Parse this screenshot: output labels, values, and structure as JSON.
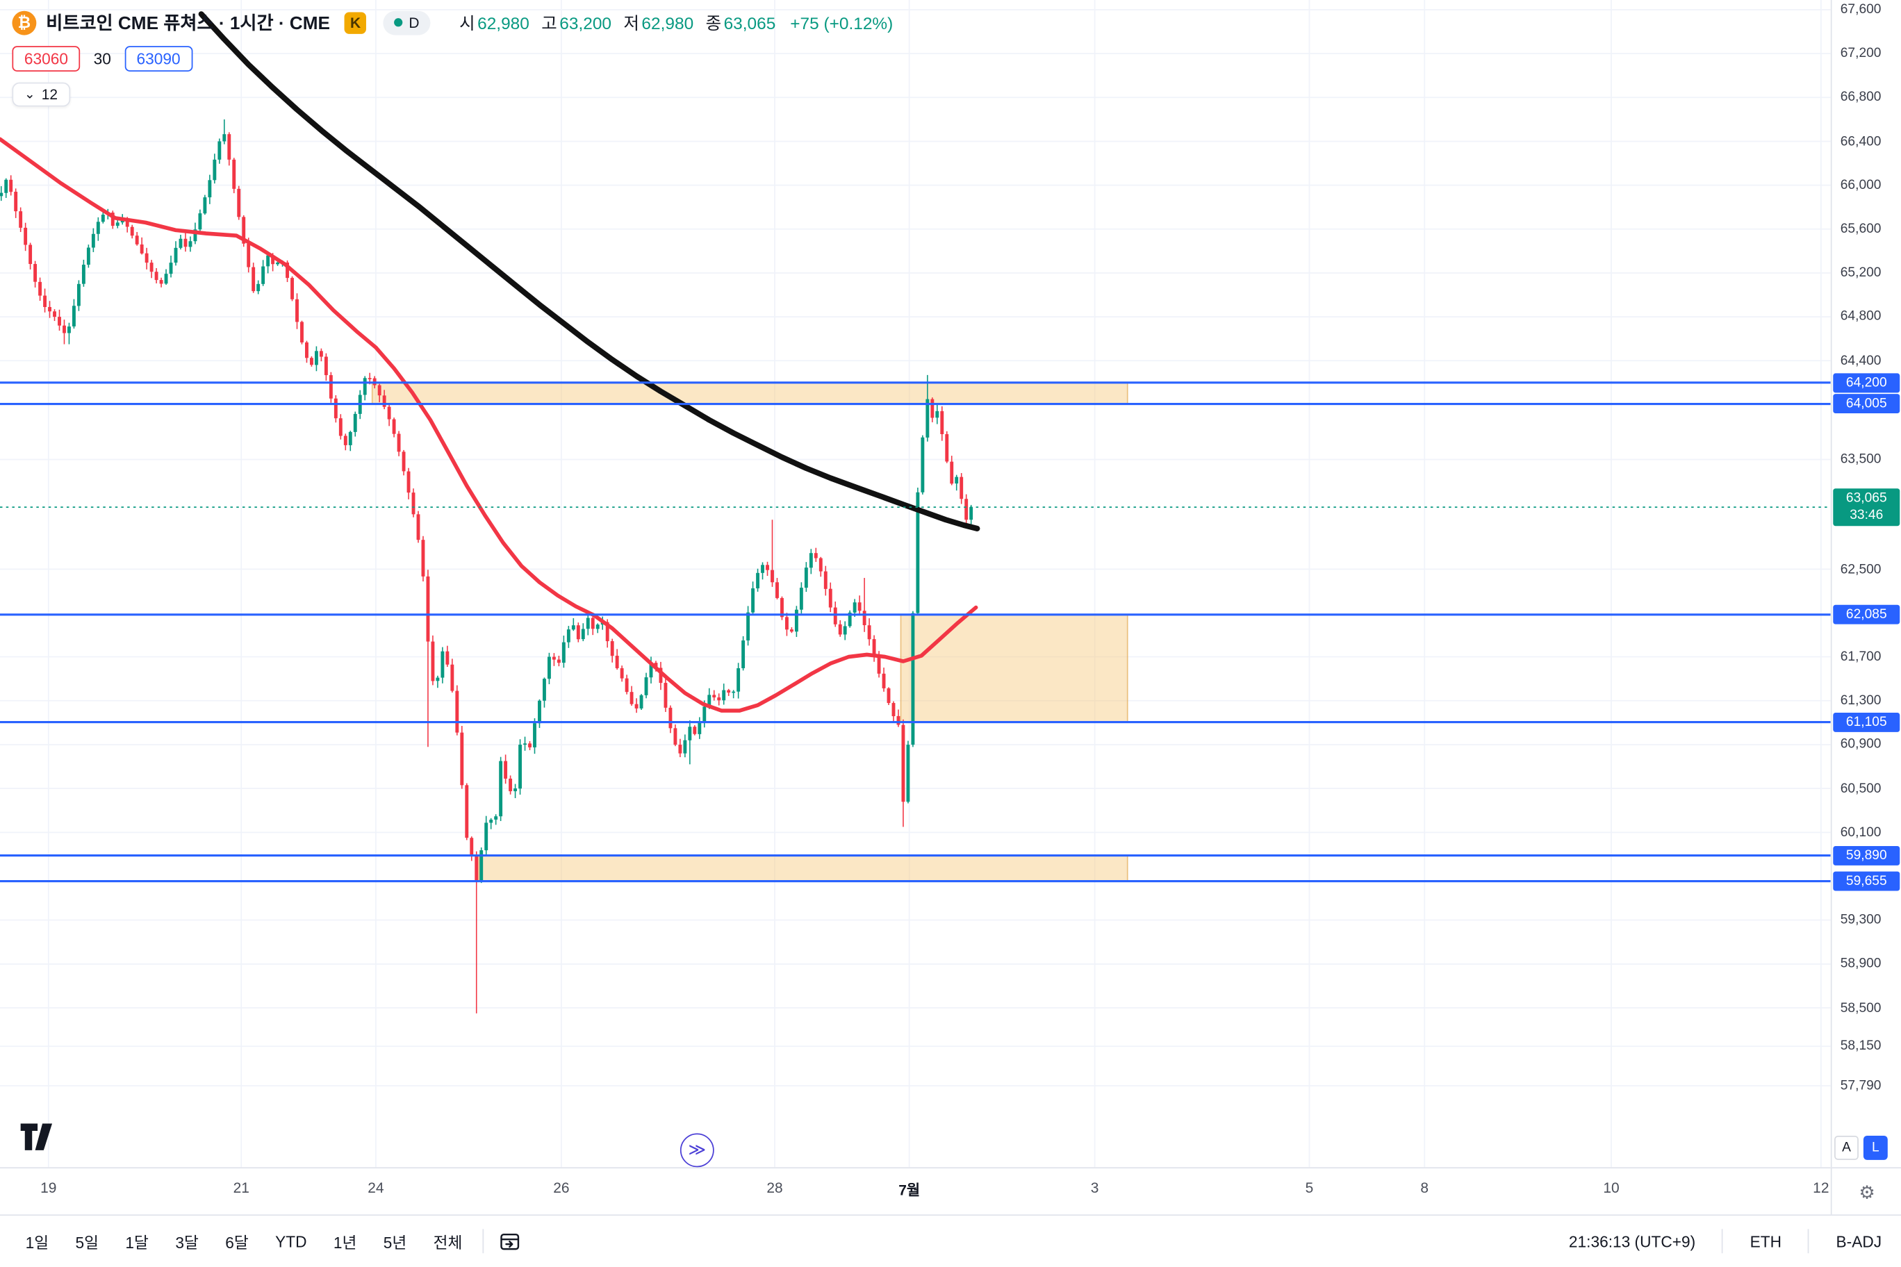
{
  "header": {
    "title": "비트코인 CME 퓨쳐스 · 1시간 · CME",
    "provider_badge": "K",
    "market_status": "D",
    "ohlc": {
      "open_label": "시",
      "open_value": "62,980",
      "high_label": "고",
      "high_value": "63,200",
      "low_label": "저",
      "low_value": "62,980",
      "close_label": "종",
      "close_value": "63,065",
      "change_value": "+75 (+0.12%)"
    },
    "order_row": {
      "sell_price": "63060",
      "quantity": "30",
      "buy_price": "63090"
    },
    "collapse": {
      "count": "12"
    }
  },
  "price_axis": {
    "last_price_label": "63,065",
    "countdown": "33:46",
    "scale_buttons": {
      "auto": "A",
      "log": "L"
    }
  },
  "toolbar": {
    "ranges": [
      "1일",
      "5일",
      "1달",
      "3달",
      "6달",
      "YTD",
      "1년",
      "5년",
      "전체"
    ],
    "clock": "21:36:13 (UTC+9)",
    "session_label": "ETH",
    "adjust_label": "B-ADJ"
  },
  "chart_data": {
    "type": "candlestick",
    "title": "비트코인 CME 퓨쳐스 · 1시간 · CME",
    "interval": "1시간",
    "exchange": "CME",
    "current": {
      "open": 62980,
      "high": 63200,
      "low": 62980,
      "close": 63065,
      "change": "+75 (+0.12%)"
    },
    "last_price": 63065,
    "y_ticks": [
      67600,
      67200,
      66800,
      66400,
      66000,
      65600,
      65200,
      64800,
      64400,
      63500,
      62500,
      61700,
      61300,
      60900,
      60500,
      60100,
      59300,
      58900,
      58500,
      58150,
      57790
    ],
    "levels": [
      {
        "price": 64200,
        "label": "64,200"
      },
      {
        "price": 64005,
        "label": "64,005"
      },
      {
        "price": 62085,
        "label": "62,085"
      },
      {
        "price": 61105,
        "label": "61,105"
      },
      {
        "price": 59890,
        "label": "59,890"
      },
      {
        "price": 59655,
        "label": "59,655"
      }
    ],
    "zones": [
      {
        "x1": 307,
        "x2": 930,
        "price_low": 64005,
        "price_high": 64200
      },
      {
        "x1": 743,
        "x2": 930,
        "price_low": 61105,
        "price_high": 62085
      },
      {
        "x1": 395,
        "x2": 930,
        "price_low": 59655,
        "price_high": 59890
      }
    ],
    "x_labels": [
      {
        "x": 40,
        "label": "19"
      },
      {
        "x": 199,
        "label": "21"
      },
      {
        "x": 310,
        "label": "24"
      },
      {
        "x": 463,
        "label": "26"
      },
      {
        "x": 639,
        "label": "28"
      },
      {
        "x": 750,
        "label": "7월",
        "bold": true
      },
      {
        "x": 903,
        "label": "3"
      },
      {
        "x": 1080,
        "label": "5"
      },
      {
        "x": 1175,
        "label": "8"
      },
      {
        "x": 1329,
        "label": "10"
      },
      {
        "x": 1502,
        "label": "12"
      }
    ],
    "price_path": [
      [
        0,
        65900
      ],
      [
        6,
        66080
      ],
      [
        12,
        65800
      ],
      [
        20,
        65500
      ],
      [
        28,
        65150
      ],
      [
        36,
        64900
      ],
      [
        44,
        64820
      ],
      [
        50,
        64700
      ],
      [
        55,
        64620
      ],
      [
        60,
        64850
      ],
      [
        66,
        65150
      ],
      [
        72,
        65400
      ],
      [
        80,
        65650
      ],
      [
        88,
        65780
      ],
      [
        94,
        65600
      ],
      [
        100,
        65720
      ],
      [
        108,
        65560
      ],
      [
        116,
        65400
      ],
      [
        124,
        65230
      ],
      [
        132,
        65080
      ],
      [
        140,
        65260
      ],
      [
        148,
        65530
      ],
      [
        154,
        65420
      ],
      [
        160,
        65560
      ],
      [
        166,
        65780
      ],
      [
        172,
        66000
      ],
      [
        178,
        66280
      ],
      [
        184,
        66520
      ],
      [
        188,
        66300
      ],
      [
        194,
        65900
      ],
      [
        200,
        65520
      ],
      [
        206,
        65200
      ],
      [
        210,
        64980
      ],
      [
        215,
        65180
      ],
      [
        220,
        65380
      ],
      [
        226,
        65260
      ],
      [
        232,
        65330
      ],
      [
        238,
        65120
      ],
      [
        244,
        64800
      ],
      [
        250,
        64520
      ],
      [
        256,
        64330
      ],
      [
        262,
        64520
      ],
      [
        267,
        64380
      ],
      [
        272,
        64100
      ],
      [
        278,
        63830
      ],
      [
        284,
        63600
      ],
      [
        290,
        63780
      ],
      [
        296,
        64050
      ],
      [
        302,
        64280
      ],
      [
        308,
        64200
      ],
      [
        314,
        64060
      ],
      [
        320,
        63900
      ],
      [
        326,
        63700
      ],
      [
        332,
        63440
      ],
      [
        338,
        63150
      ],
      [
        344,
        62850
      ],
      [
        350,
        62350
      ],
      [
        355,
        61500
      ],
      [
        360,
        61450
      ],
      [
        365,
        61750
      ],
      [
        370,
        61600
      ],
      [
        375,
        61250
      ],
      [
        380,
        60650
      ],
      [
        385,
        60050
      ],
      [
        390,
        59850
      ],
      [
        394,
        59600
      ],
      [
        398,
        60050
      ],
      [
        403,
        60280
      ],
      [
        408,
        60120
      ],
      [
        413,
        60750
      ],
      [
        418,
        60550
      ],
      [
        424,
        60400
      ],
      [
        430,
        61000
      ],
      [
        436,
        60820
      ],
      [
        442,
        61150
      ],
      [
        448,
        61450
      ],
      [
        454,
        61750
      ],
      [
        460,
        61600
      ],
      [
        466,
        61880
      ],
      [
        472,
        62020
      ],
      [
        478,
        61830
      ],
      [
        484,
        62080
      ],
      [
        490,
        61930
      ],
      [
        496,
        62060
      ],
      [
        502,
        61800
      ],
      [
        508,
        61620
      ],
      [
        514,
        61480
      ],
      [
        520,
        61280
      ],
      [
        526,
        61220
      ],
      [
        532,
        61480
      ],
      [
        538,
        61680
      ],
      [
        544,
        61520
      ],
      [
        550,
        61180
      ],
      [
        556,
        60920
      ],
      [
        562,
        60800
      ],
      [
        568,
        61080
      ],
      [
        574,
        60980
      ],
      [
        580,
        61220
      ],
      [
        586,
        61380
      ],
      [
        592,
        61280
      ],
      [
        598,
        61420
      ],
      [
        604,
        61330
      ],
      [
        610,
        61650
      ],
      [
        616,
        62050
      ],
      [
        622,
        62380
      ],
      [
        628,
        62550
      ],
      [
        634,
        62480
      ],
      [
        640,
        62280
      ],
      [
        646,
        62020
      ],
      [
        652,
        61880
      ],
      [
        658,
        62180
      ],
      [
        664,
        62480
      ],
      [
        670,
        62680
      ],
      [
        676,
        62520
      ],
      [
        682,
        62280
      ],
      [
        688,
        62020
      ],
      [
        694,
        61880
      ],
      [
        700,
        62080
      ],
      [
        706,
        62220
      ],
      [
        712,
        62020
      ],
      [
        718,
        61830
      ],
      [
        724,
        61580
      ],
      [
        730,
        61380
      ],
      [
        736,
        61180
      ],
      [
        741,
        61080
      ],
      [
        745,
        60380
      ],
      [
        749,
        60900
      ],
      [
        753,
        62100
      ],
      [
        757,
        63200
      ],
      [
        761,
        63700
      ],
      [
        765,
        64050
      ],
      [
        769,
        63880
      ],
      [
        773,
        63940
      ],
      [
        777,
        63730
      ],
      [
        781,
        63480
      ],
      [
        785,
        63280
      ],
      [
        789,
        63340
      ],
      [
        793,
        63140
      ],
      [
        797,
        62950
      ],
      [
        801,
        63065
      ]
    ],
    "wick_extremes": [
      {
        "x": 55,
        "low": 64550
      },
      {
        "x": 184,
        "high": 66600
      },
      {
        "x": 354,
        "low": 60880
      },
      {
        "x": 392,
        "low": 58450
      },
      {
        "x": 568,
        "low": 60720
      },
      {
        "x": 636,
        "high": 62950
      },
      {
        "x": 714,
        "high": 62420
      },
      {
        "x": 745,
        "low": 60150
      },
      {
        "x": 764,
        "high": 64270
      }
    ],
    "ma_fast": [
      [
        0,
        66420
      ],
      [
        25,
        66220
      ],
      [
        50,
        66020
      ],
      [
        75,
        65840
      ],
      [
        95,
        65700
      ],
      [
        120,
        65660
      ],
      [
        145,
        65590
      ],
      [
        170,
        65560
      ],
      [
        195,
        65540
      ],
      [
        215,
        65420
      ],
      [
        235,
        65280
      ],
      [
        255,
        65090
      ],
      [
        275,
        64860
      ],
      [
        295,
        64660
      ],
      [
        310,
        64520
      ],
      [
        325,
        64330
      ],
      [
        340,
        64110
      ],
      [
        355,
        63860
      ],
      [
        370,
        63560
      ],
      [
        385,
        63260
      ],
      [
        400,
        62990
      ],
      [
        415,
        62740
      ],
      [
        430,
        62530
      ],
      [
        445,
        62380
      ],
      [
        460,
        62260
      ],
      [
        475,
        62160
      ],
      [
        490,
        62080
      ],
      [
        505,
        61960
      ],
      [
        520,
        61810
      ],
      [
        535,
        61660
      ],
      [
        550,
        61510
      ],
      [
        565,
        61370
      ],
      [
        580,
        61270
      ],
      [
        595,
        61210
      ],
      [
        610,
        61210
      ],
      [
        625,
        61260
      ],
      [
        640,
        61350
      ],
      [
        655,
        61450
      ],
      [
        670,
        61550
      ],
      [
        685,
        61640
      ],
      [
        700,
        61700
      ],
      [
        715,
        61720
      ],
      [
        730,
        61700
      ],
      [
        745,
        61660
      ],
      [
        760,
        61710
      ],
      [
        775,
        61860
      ],
      [
        790,
        62010
      ],
      [
        805,
        62150
      ]
    ],
    "ma_slow": [
      [
        166,
        67560
      ],
      [
        185,
        67330
      ],
      [
        205,
        67100
      ],
      [
        225,
        66890
      ],
      [
        245,
        66690
      ],
      [
        265,
        66500
      ],
      [
        285,
        66320
      ],
      [
        305,
        66150
      ],
      [
        325,
        65980
      ],
      [
        345,
        65810
      ],
      [
        365,
        65630
      ],
      [
        385,
        65450
      ],
      [
        405,
        65270
      ],
      [
        425,
        65090
      ],
      [
        445,
        64910
      ],
      [
        465,
        64740
      ],
      [
        485,
        64570
      ],
      [
        505,
        64410
      ],
      [
        525,
        64260
      ],
      [
        545,
        64120
      ],
      [
        565,
        63990
      ],
      [
        585,
        63860
      ],
      [
        605,
        63740
      ],
      [
        625,
        63630
      ],
      [
        645,
        63520
      ],
      [
        665,
        63420
      ],
      [
        685,
        63330
      ],
      [
        705,
        63250
      ],
      [
        725,
        63170
      ],
      [
        745,
        63090
      ],
      [
        765,
        63010
      ],
      [
        780,
        62950
      ],
      [
        795,
        62900
      ],
      [
        806,
        62870
      ]
    ],
    "colors": {
      "up": "#089981",
      "down": "#f23645",
      "level": "#2962ff",
      "ma_fast": "#f23645",
      "ma_slow": "#111111",
      "zone_fill": "#f7c97e",
      "zone_stroke": "#e2a84f",
      "grid": "#f0f3fa",
      "last": "#089981",
      "label_blue": "#2962ff"
    }
  }
}
